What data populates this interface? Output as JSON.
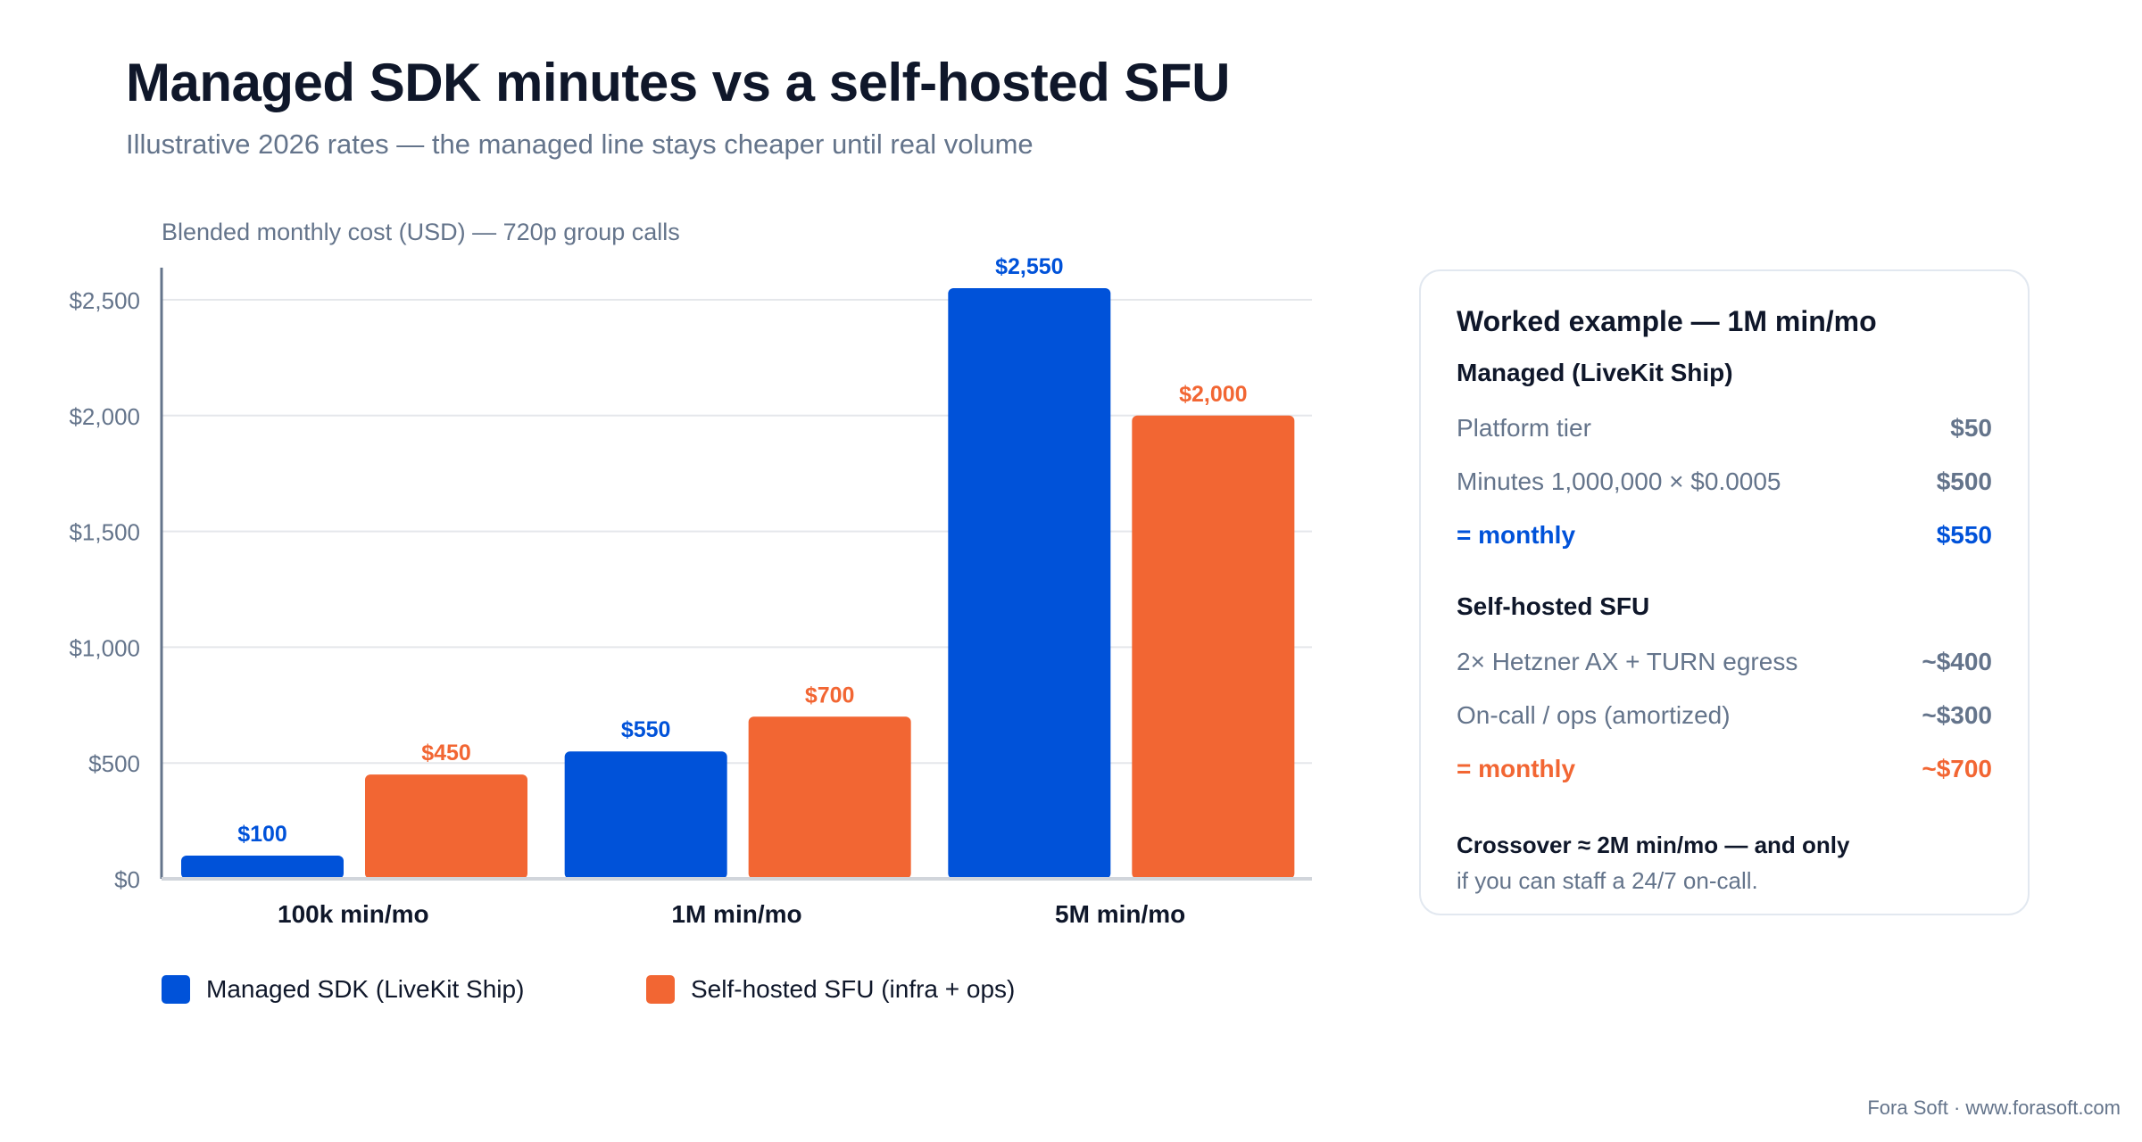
{
  "header": {
    "title": "Managed SDK minutes vs a self-hosted SFU",
    "subtitle": "Illustrative 2026 rates — the managed line stays cheaper until real volume"
  },
  "chart_data": {
    "type": "bar",
    "ylabel": "Blended monthly cost (USD) — 720p group calls",
    "categories": [
      "100k min/mo",
      "1M min/mo",
      "5M min/mo"
    ],
    "series": [
      {
        "name": "Managed SDK (LiveKit Ship)",
        "values": [
          100,
          550,
          2550
        ],
        "labels": [
          "$100",
          "$550",
          "$2,550"
        ],
        "color": "#0052d9"
      },
      {
        "name": "Self-hosted SFU (infra + ops)",
        "values": [
          450,
          700,
          2000
        ],
        "labels": [
          "$450",
          "$700",
          "$2,000"
        ],
        "color": "#f26633"
      }
    ],
    "yticks": [
      0,
      500,
      1000,
      1500,
      2000,
      2500
    ],
    "ytick_labels": [
      "$0",
      "$500",
      "$1,000",
      "$1,500",
      "$2,000",
      "$2,500"
    ],
    "ylim": [
      0,
      2600
    ],
    "grid": true,
    "legend": "bottom-left"
  },
  "panel": {
    "title": "Worked example — 1M min/mo",
    "managed": {
      "heading": "Managed (LiveKit Ship)",
      "rows": [
        {
          "label": "Platform tier",
          "value": "$50"
        },
        {
          "label": "Minutes 1,000,000 × $0.0005",
          "value": "$500"
        }
      ],
      "total": {
        "label": "= monthly",
        "value": "$550"
      }
    },
    "selfhosted": {
      "heading": "Self-hosted SFU",
      "rows": [
        {
          "label": "2× Hetzner AX + TURN egress",
          "value": "~$400"
        },
        {
          "label": "On-call / ops (amortized)",
          "value": "~$300"
        }
      ],
      "total": {
        "label": "= monthly",
        "value": "~$700"
      }
    },
    "crossover": "Crossover ≈ 2M min/mo — and only",
    "crossover_note": "if you can staff a 24/7 on-call."
  },
  "footer": "Fora Soft · www.forasoft.com"
}
